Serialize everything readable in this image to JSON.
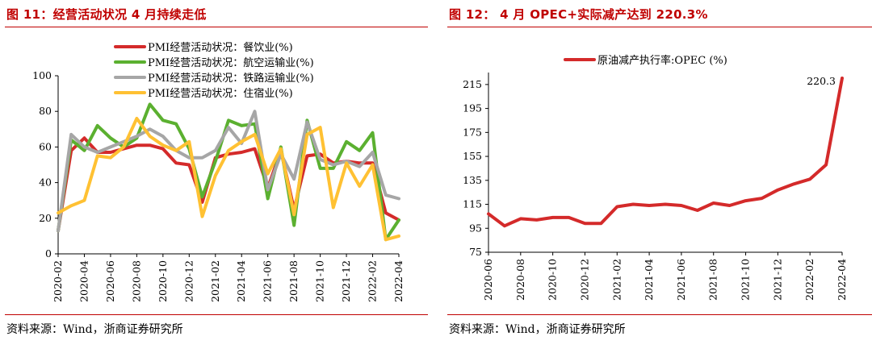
{
  "left_panel": {
    "figure_title": "图 11：经营活动状况 4 月持续走低",
    "source": "资料来源：Wind，浙商证券研究所"
  },
  "right_panel": {
    "figure_title": "图 12： 4 月 OPEC+实际减产达到 220.3%",
    "source": "资料来源：Wind，浙商证券研究所"
  },
  "chart_data": [
    {
      "type": "line",
      "title": "",
      "xlabel": "",
      "ylabel": "",
      "ylim": [
        0,
        100
      ],
      "yticks": [
        0,
        20,
        40,
        60,
        80,
        100
      ],
      "x": [
        "2020-02",
        "2020-03",
        "2020-04",
        "2020-05",
        "2020-06",
        "2020-07",
        "2020-08",
        "2020-09",
        "2020-10",
        "2020-11",
        "2020-12",
        "2021-01",
        "2021-02",
        "2021-03",
        "2021-04",
        "2021-05",
        "2021-06",
        "2021-07",
        "2021-08",
        "2021-09",
        "2021-10",
        "2021-11",
        "2021-12",
        "2022-01",
        "2022-02",
        "2022-03",
        "2022-04"
      ],
      "xtick_labels": [
        "2020-02",
        "2020-04",
        "2020-06",
        "2020-08",
        "2020-10",
        "2020-12",
        "2021-02",
        "2021-04",
        "2021-06",
        "2021-08",
        "2021-10",
        "2021-12",
        "2022-02",
        "2022-04"
      ],
      "legend_position": "top",
      "grid": false,
      "series": [
        {
          "name": "PMI经营活动状况：餐饮业(%)",
          "color": "#d42a2a",
          "values": [
            13,
            58,
            65,
            57,
            57,
            59,
            61,
            61,
            59,
            51,
            50,
            29,
            54,
            56,
            57,
            59,
            37,
            58,
            25,
            55,
            56,
            51,
            52,
            51,
            51,
            23,
            19
          ]
        },
        {
          "name": "PMI经营活动状况：航空运输业(%)",
          "color": "#5bb030",
          "values": [
            13,
            64,
            58,
            72,
            65,
            60,
            65,
            84,
            75,
            73,
            59,
            32,
            52,
            75,
            72,
            73,
            31,
            60,
            16,
            75,
            48,
            48,
            63,
            58,
            68,
            8,
            19
          ]
        },
        {
          "name": "PMI经营活动状况：铁路运输业(%)",
          "color": "#a6a6a6",
          "values": [
            13,
            67,
            60,
            57,
            60,
            63,
            66,
            70,
            66,
            58,
            54,
            54,
            58,
            71,
            62,
            80,
            36,
            56,
            42,
            74,
            53,
            50,
            52,
            49,
            57,
            33,
            31
          ]
        },
        {
          "name": "PMI经营活动状况：住宿业(%)",
          "color": "#ffc133",
          "values": [
            23,
            27,
            30,
            55,
            54,
            60,
            76,
            66,
            61,
            58,
            63,
            21,
            44,
            58,
            63,
            67,
            45,
            59,
            22,
            67,
            71,
            26,
            51,
            38,
            50,
            8,
            10
          ]
        }
      ]
    },
    {
      "type": "line",
      "title": "",
      "xlabel": "",
      "ylabel": "",
      "ylim": [
        75,
        225
      ],
      "yticks": [
        75,
        95,
        115,
        135,
        155,
        175,
        195,
        215
      ],
      "x": [
        "2020-06",
        "2020-07",
        "2020-08",
        "2020-09",
        "2020-10",
        "2020-11",
        "2020-12",
        "2021-01",
        "2021-02",
        "2021-03",
        "2021-04",
        "2021-05",
        "2021-06",
        "2021-07",
        "2021-08",
        "2021-09",
        "2021-10",
        "2021-11",
        "2021-12",
        "2022-01",
        "2022-02",
        "2022-03",
        "2022-04"
      ],
      "xtick_labels": [
        "2020-06",
        "2020-08",
        "2020-10",
        "2020-12",
        "2021-02",
        "2021-04",
        "2021-06",
        "2021-08",
        "2021-10",
        "2021-12",
        "2022-02",
        "2022-04"
      ],
      "legend_position": "top",
      "grid": false,
      "annotation": "220.3",
      "series": [
        {
          "name": "原油减产执行率:OPEC (%)",
          "color": "#d42a2a",
          "values": [
            107,
            97,
            103,
            102,
            104,
            104,
            99,
            99,
            113,
            115,
            114,
            115,
            114,
            110,
            116,
            114,
            118,
            120,
            127,
            132,
            136,
            148,
            220.3
          ]
        }
      ]
    }
  ]
}
